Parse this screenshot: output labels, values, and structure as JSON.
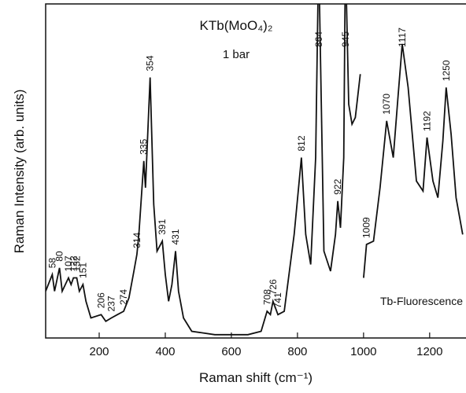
{
  "chart_data": {
    "type": "line",
    "title": "KTb(MoO₄)₂",
    "subtitle": "1 bar",
    "annotation": "Tb-Fluorescence",
    "x_label": "Raman shift (cm⁻¹)",
    "y_label": "Raman Intensity (arb. units)",
    "x": [
      38,
      58,
      65,
      80,
      88,
      107,
      115,
      122,
      132,
      140,
      151,
      160,
      175,
      206,
      220,
      237,
      255,
      274,
      290,
      305,
      314,
      320,
      335,
      340,
      354,
      365,
      375,
      391,
      400,
      410,
      420,
      431,
      440,
      455,
      480,
      550,
      650,
      690,
      708,
      718,
      726,
      741,
      760,
      790,
      812,
      825,
      840,
      855,
      864,
      880,
      900,
      915,
      922,
      930,
      940,
      945,
      955,
      965,
      975,
      990,
      998,
      1000,
      1009,
      1030,
      1050,
      1070,
      1090,
      1105,
      1117,
      1135,
      1160,
      1180,
      1192,
      1210,
      1225,
      1240,
      1250,
      1265,
      1280,
      1300
    ],
    "values": [
      14,
      19,
      14,
      21,
      14,
      18,
      16,
      18,
      18,
      14,
      16,
      11,
      6,
      7,
      5,
      6,
      7,
      8,
      12,
      20,
      25,
      31,
      53,
      45,
      78,
      40,
      26,
      29,
      19,
      11,
      16,
      26,
      14,
      6,
      2,
      1,
      1,
      2,
      8,
      7,
      11,
      7,
      8,
      31,
      54,
      31,
      22,
      54,
      115,
      26,
      20,
      31,
      41,
      33,
      54,
      115,
      70,
      64,
      66,
      79,
      null,
      18,
      28,
      29,
      45,
      65,
      54,
      73,
      88,
      75,
      47,
      44,
      60,
      47,
      42,
      59,
      75,
      61,
      42,
      31
    ],
    "color": "#111111",
    "xlim": [
      38,
      1310
    ],
    "ylim": [
      0,
      100
    ],
    "xticks": [
      200,
      400,
      600,
      800,
      1000,
      1200
    ],
    "peaks": [
      58,
      80,
      107,
      122,
      132,
      151,
      206,
      237,
      274,
      314,
      335,
      354,
      391,
      431,
      708,
      726,
      741,
      812,
      864,
      922,
      945,
      1009,
      1070,
      1117,
      1192,
      1250
    ]
  }
}
